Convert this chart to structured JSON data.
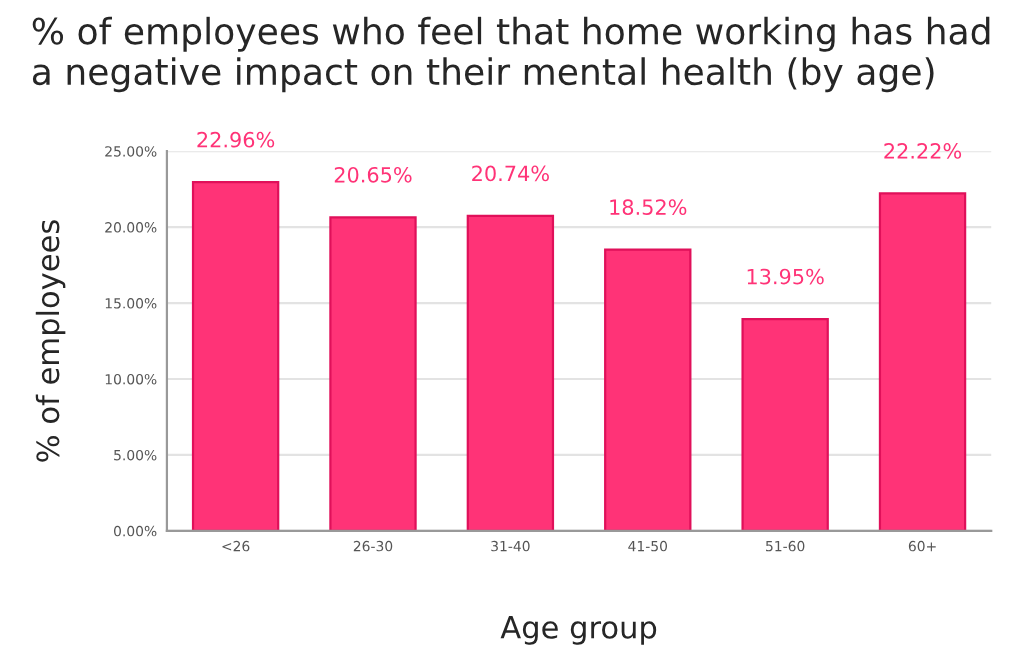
{
  "chart_data": {
    "type": "bar",
    "title": "% of employees who feel that home working has had a negative impact on their mental health (by age)",
    "xlabel": "Age group",
    "ylabel": "% of employees",
    "categories": [
      "<26",
      "26-30",
      "31-40",
      "41-50",
      "51-60",
      "60+"
    ],
    "values": [
      22.96,
      20.65,
      20.74,
      18.52,
      13.95,
      22.22
    ],
    "value_labels": [
      "22.96%",
      "20.65%",
      "20.74%",
      "18.52%",
      "13.95%",
      "22.22%"
    ],
    "color": "#ff3377",
    "ylim": [
      0,
      25
    ],
    "yticks": [
      {
        "value": 0,
        "label": "0.00%"
      },
      {
        "value": 5,
        "label": "5.00%"
      },
      {
        "value": 10,
        "label": "10.00%"
      },
      {
        "value": 15,
        "label": "15.00%"
      },
      {
        "value": 20,
        "label": "20.00%"
      },
      {
        "value": 25,
        "label": "25.00%"
      }
    ],
    "grid": "y"
  }
}
